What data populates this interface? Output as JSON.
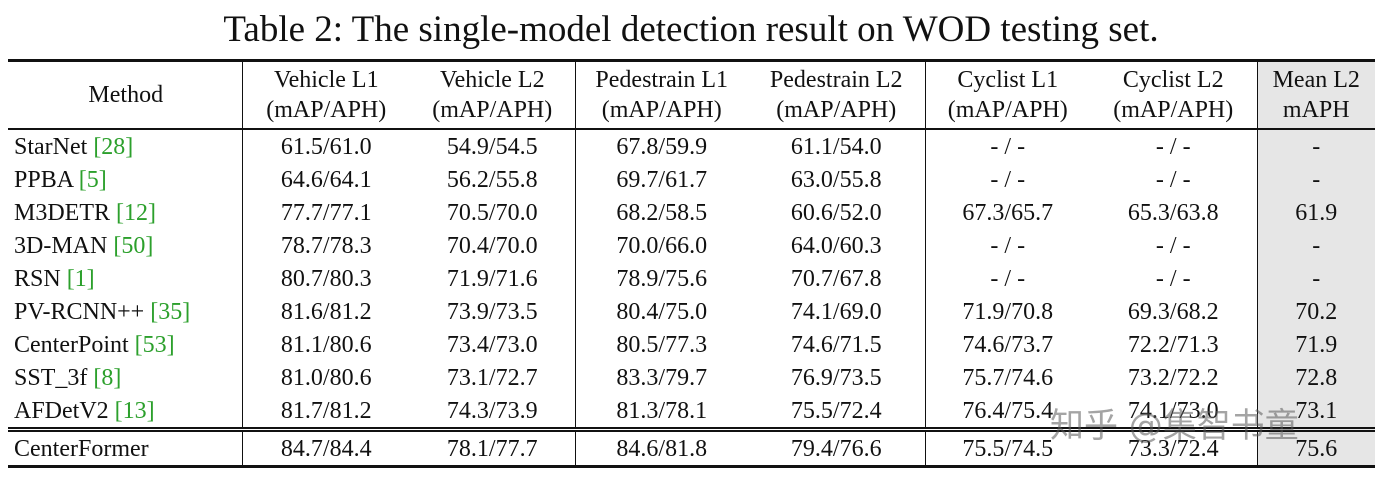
{
  "title": "Table 2: The single-model detection result on WOD testing set.",
  "header": [
    [
      "Method"
    ],
    [
      "Vehicle L1",
      "(mAP/APH)"
    ],
    [
      "Vehicle L2",
      "(mAP/APH)"
    ],
    [
      "Pedestrain L1",
      "(mAP/APH)"
    ],
    [
      "Pedestrain L2",
      "(mAP/APH)"
    ],
    [
      "Cyclist L1",
      "(mAP/APH)"
    ],
    [
      "Cyclist L2",
      "(mAP/APH)"
    ],
    [
      "Mean L2",
      "mAPH"
    ]
  ],
  "rows": [
    {
      "method": "StarNet",
      "ref": "[28]",
      "cells": [
        "61.5/61.0",
        "54.9/54.5",
        "67.8/59.9",
        "61.1/54.0",
        "- / -",
        "- / -",
        "-"
      ],
      "bold": []
    },
    {
      "method": "PPBA",
      "ref": "[5]",
      "cells": [
        "64.6/64.1",
        "56.2/55.8",
        "69.7/61.7",
        "63.0/55.8",
        "- / -",
        "- / -",
        "-"
      ],
      "bold": []
    },
    {
      "method": "M3DETR",
      "ref": "[12]",
      "cells": [
        "77.7/77.1",
        "70.5/70.0",
        "68.2/58.5",
        "60.6/52.0",
        "67.3/65.7",
        "65.3/63.8",
        "61.9"
      ],
      "bold": []
    },
    {
      "method": "3D-MAN",
      "ref": "[50]",
      "cells": [
        "78.7/78.3",
        "70.4/70.0",
        "70.0/66.0",
        "64.0/60.3",
        "- / -",
        "- / -",
        "-"
      ],
      "bold": []
    },
    {
      "method": "RSN",
      "ref": "[1]",
      "cells": [
        "80.7/80.3",
        "71.9/71.6",
        "78.9/75.6",
        "70.7/67.8",
        "- / -",
        "- / -",
        "-"
      ],
      "bold": []
    },
    {
      "method": "PV-RCNN++",
      "ref": "[35]",
      "cells": [
        "81.6/81.2",
        "73.9/73.5",
        "80.4/75.0",
        "74.1/69.0",
        "71.9/70.8",
        "69.3/68.2",
        "70.2"
      ],
      "bold": []
    },
    {
      "method": "CenterPoint",
      "ref": "[53]",
      "cells": [
        "81.1/80.6",
        "73.4/73.0",
        "80.5/77.3",
        "74.6/71.5",
        "74.6/73.7",
        "72.2/71.3",
        "71.9"
      ],
      "bold": []
    },
    {
      "method": "SST_3f",
      "ref": "[8]",
      "cells": [
        "81.0/80.6",
        "73.1/72.7",
        "83.3/79.7",
        "76.9/73.5",
        "75.7/74.6",
        "73.2/72.2",
        "72.8"
      ],
      "bold": []
    },
    {
      "method": "AFDetV2",
      "ref": "[13]",
      "cells": [
        "81.7/81.2",
        "74.3/73.9",
        "81.3/78.1",
        "75.5/72.4",
        "76.4/75.4",
        "74.1/73.0",
        "73.1"
      ],
      "bold": [
        4,
        5
      ]
    },
    {
      "method": "CenterFormer",
      "cells": [
        "84.7/84.4",
        "78.1/77.7",
        "84.6/81.8",
        "79.4/76.6",
        "75.5/74.5",
        "73.3/72.4",
        "75.6"
      ],
      "bold": [
        0,
        1,
        2,
        3,
        6
      ]
    }
  ],
  "watermark": "知乎 @集智书童"
}
